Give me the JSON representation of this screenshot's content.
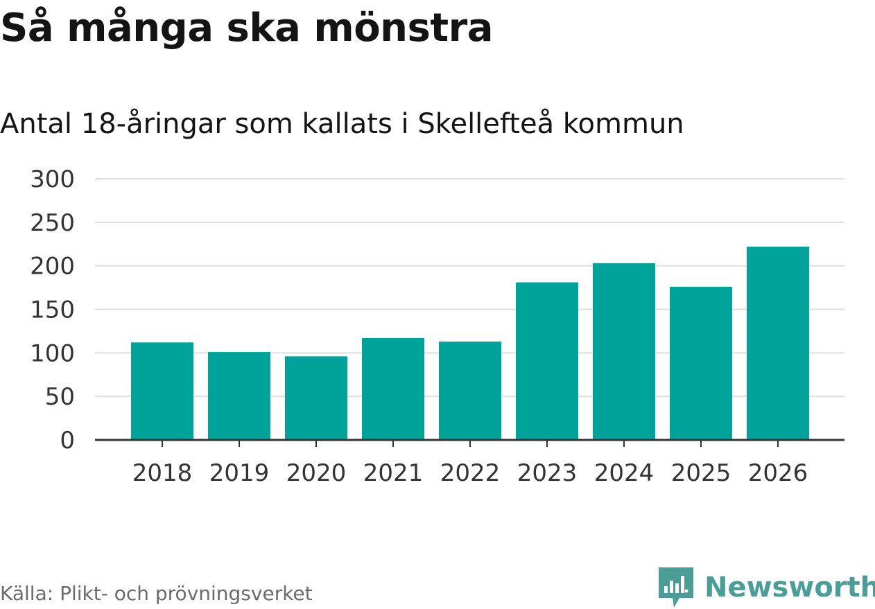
{
  "header": {
    "title": "Så många ska mönstra",
    "subtitle": "Antal 18-åringar som kallats i Skellefteå kommun"
  },
  "footer": {
    "source": "Källa: Plikt- och prövningsverket",
    "brand": "Newsworthy"
  },
  "colors": {
    "bar": "#00a39a",
    "brand": "#4b9e98",
    "grid": "#dddddd",
    "axis": "#333333"
  },
  "chart_data": {
    "type": "bar",
    "categories": [
      "2018",
      "2019",
      "2020",
      "2021",
      "2022",
      "2023",
      "2024",
      "2025",
      "2026"
    ],
    "values": [
      112,
      101,
      96,
      117,
      113,
      181,
      203,
      176,
      222
    ],
    "ylim": [
      0,
      300
    ],
    "yticks": [
      0,
      50,
      100,
      150,
      200,
      250,
      300
    ],
    "grid": true,
    "legend": "none"
  }
}
